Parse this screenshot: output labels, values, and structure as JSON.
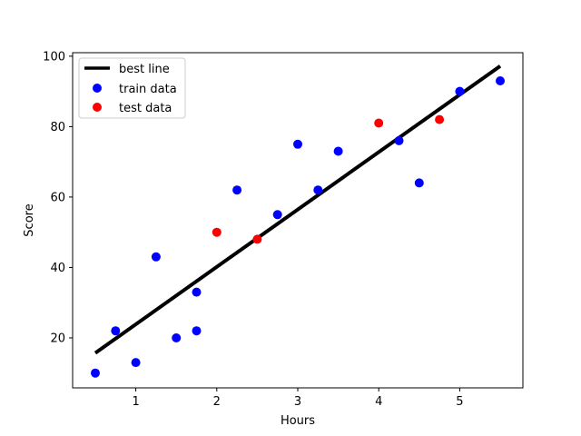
{
  "chart_data": {
    "type": "scatter",
    "title": "",
    "xlabel": "Hours",
    "ylabel": "Score",
    "xlim": [
      0.22,
      5.78
    ],
    "ylim": [
      5.8,
      101
    ],
    "xticks": [
      1,
      2,
      3,
      4,
      5
    ],
    "yticks": [
      20,
      40,
      60,
      80,
      100
    ],
    "grid": false,
    "legend_position": "top-left",
    "series": [
      {
        "name": "best line",
        "kind": "line",
        "color": "#000000",
        "x": [
          0.5,
          5.5
        ],
        "y": [
          15.7,
          97.2
        ]
      },
      {
        "name": "train data",
        "kind": "scatter",
        "color": "#0000ff",
        "x": [
          0.5,
          0.75,
          1.0,
          1.25,
          1.5,
          1.75,
          1.75,
          2.25,
          2.75,
          3.0,
          3.25,
          3.5,
          4.25,
          4.5,
          5.0,
          5.5
        ],
        "y": [
          10,
          22,
          13,
          43,
          20,
          22,
          33,
          62,
          55,
          75,
          62,
          73,
          76,
          64,
          90,
          93
        ]
      },
      {
        "name": "test data",
        "kind": "scatter",
        "color": "#ff0000",
        "x": [
          2.0,
          2.5,
          4.0,
          4.75
        ],
        "y": [
          50,
          48,
          81,
          82
        ]
      }
    ]
  }
}
